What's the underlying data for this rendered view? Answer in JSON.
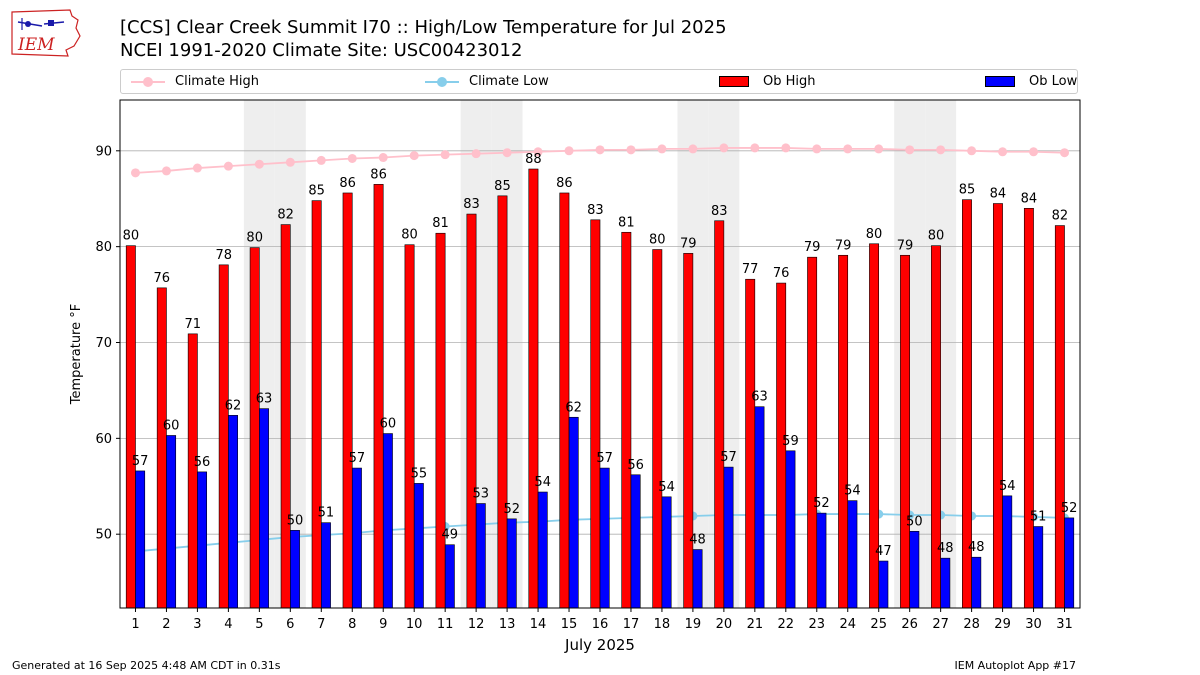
{
  "logo": {
    "text": "IEM"
  },
  "header": {
    "title": "[CCS] Clear Creek Summit I70  :: High/Low Temperature for Jul 2025",
    "subtitle": "NCEI 1991-2020 Climate Site: USC00423012"
  },
  "footer": {
    "generated": "Generated at 16 Sep 2025 4:48 AM CDT in 0.31s",
    "app": "IEM Autoplot App #17"
  },
  "colors": {
    "climate_high": "#ffc0cb",
    "climate_low": "#87ceeb",
    "ob_high": "#ff0000",
    "ob_low": "#0000ff",
    "weekend_shade": "#eeeeee",
    "grid": "#b0b0b0"
  },
  "chart_data": {
    "type": "bar",
    "xlabel": "July 2025",
    "ylabel": "Temperature °F",
    "x": [
      1,
      2,
      3,
      4,
      5,
      6,
      7,
      8,
      9,
      10,
      11,
      12,
      13,
      14,
      15,
      16,
      17,
      18,
      19,
      20,
      21,
      22,
      23,
      24,
      25,
      26,
      27,
      28,
      29,
      30,
      31
    ],
    "xlim": [
      0.5,
      31.5
    ],
    "ylim": [
      42.3,
      95.3
    ],
    "yticks": [
      50,
      60,
      70,
      80,
      90
    ],
    "grid": "horizontal",
    "legend_position": "top",
    "shaded_days": [
      5,
      6,
      12,
      13,
      19,
      20,
      26,
      27
    ],
    "series": [
      {
        "name": "Climate High",
        "type": "line",
        "values": [
          87.7,
          87.9,
          88.2,
          88.4,
          88.6,
          88.8,
          89.0,
          89.2,
          89.3,
          89.5,
          89.6,
          89.7,
          89.8,
          89.9,
          90.0,
          90.1,
          90.1,
          90.2,
          90.2,
          90.3,
          90.3,
          90.3,
          90.2,
          90.2,
          90.2,
          90.1,
          90.1,
          90.0,
          89.9,
          89.9,
          89.8
        ]
      },
      {
        "name": "Climate Low",
        "type": "line",
        "values": [
          48.2,
          48.5,
          48.8,
          49.1,
          49.4,
          49.7,
          49.9,
          50.1,
          50.4,
          50.6,
          50.8,
          51.0,
          51.2,
          51.3,
          51.5,
          51.6,
          51.7,
          51.8,
          51.9,
          52.0,
          52.0,
          52.0,
          52.1,
          52.1,
          52.1,
          52.0,
          52.0,
          51.9,
          51.9,
          51.8,
          51.7
        ]
      },
      {
        "name": "Ob High",
        "type": "bar",
        "values": [
          80,
          76,
          71,
          78,
          80,
          82,
          85,
          86,
          86,
          80,
          81,
          83,
          85,
          88,
          86,
          83,
          81,
          80,
          79,
          83,
          77,
          76,
          79,
          79,
          80,
          79,
          80,
          85,
          84,
          84,
          82
        ],
        "plotted": [
          80.1,
          75.7,
          70.9,
          78.1,
          79.9,
          82.3,
          84.8,
          85.6,
          86.5,
          80.2,
          81.4,
          83.4,
          85.3,
          88.1,
          85.6,
          82.8,
          81.5,
          79.7,
          79.3,
          82.7,
          76.6,
          76.2,
          78.9,
          79.1,
          80.3,
          79.1,
          80.1,
          84.9,
          84.5,
          84.0,
          82.2
        ]
      },
      {
        "name": "Ob Low",
        "type": "bar",
        "values": [
          57,
          60,
          56,
          62,
          63,
          50,
          51,
          57,
          60,
          55,
          49,
          53,
          52,
          54,
          62,
          57,
          56,
          54,
          48,
          57,
          63,
          59,
          52,
          54,
          47,
          50,
          48,
          48,
          54,
          51,
          52
        ],
        "plotted": [
          56.6,
          60.3,
          56.5,
          62.4,
          63.1,
          50.4,
          51.2,
          56.9,
          60.5,
          55.3,
          48.9,
          53.2,
          51.6,
          54.4,
          62.2,
          56.9,
          56.2,
          53.9,
          48.4,
          57.0,
          63.3,
          58.7,
          52.2,
          53.5,
          47.2,
          50.3,
          47.5,
          47.6,
          54.0,
          50.8,
          51.7
        ]
      }
    ]
  }
}
